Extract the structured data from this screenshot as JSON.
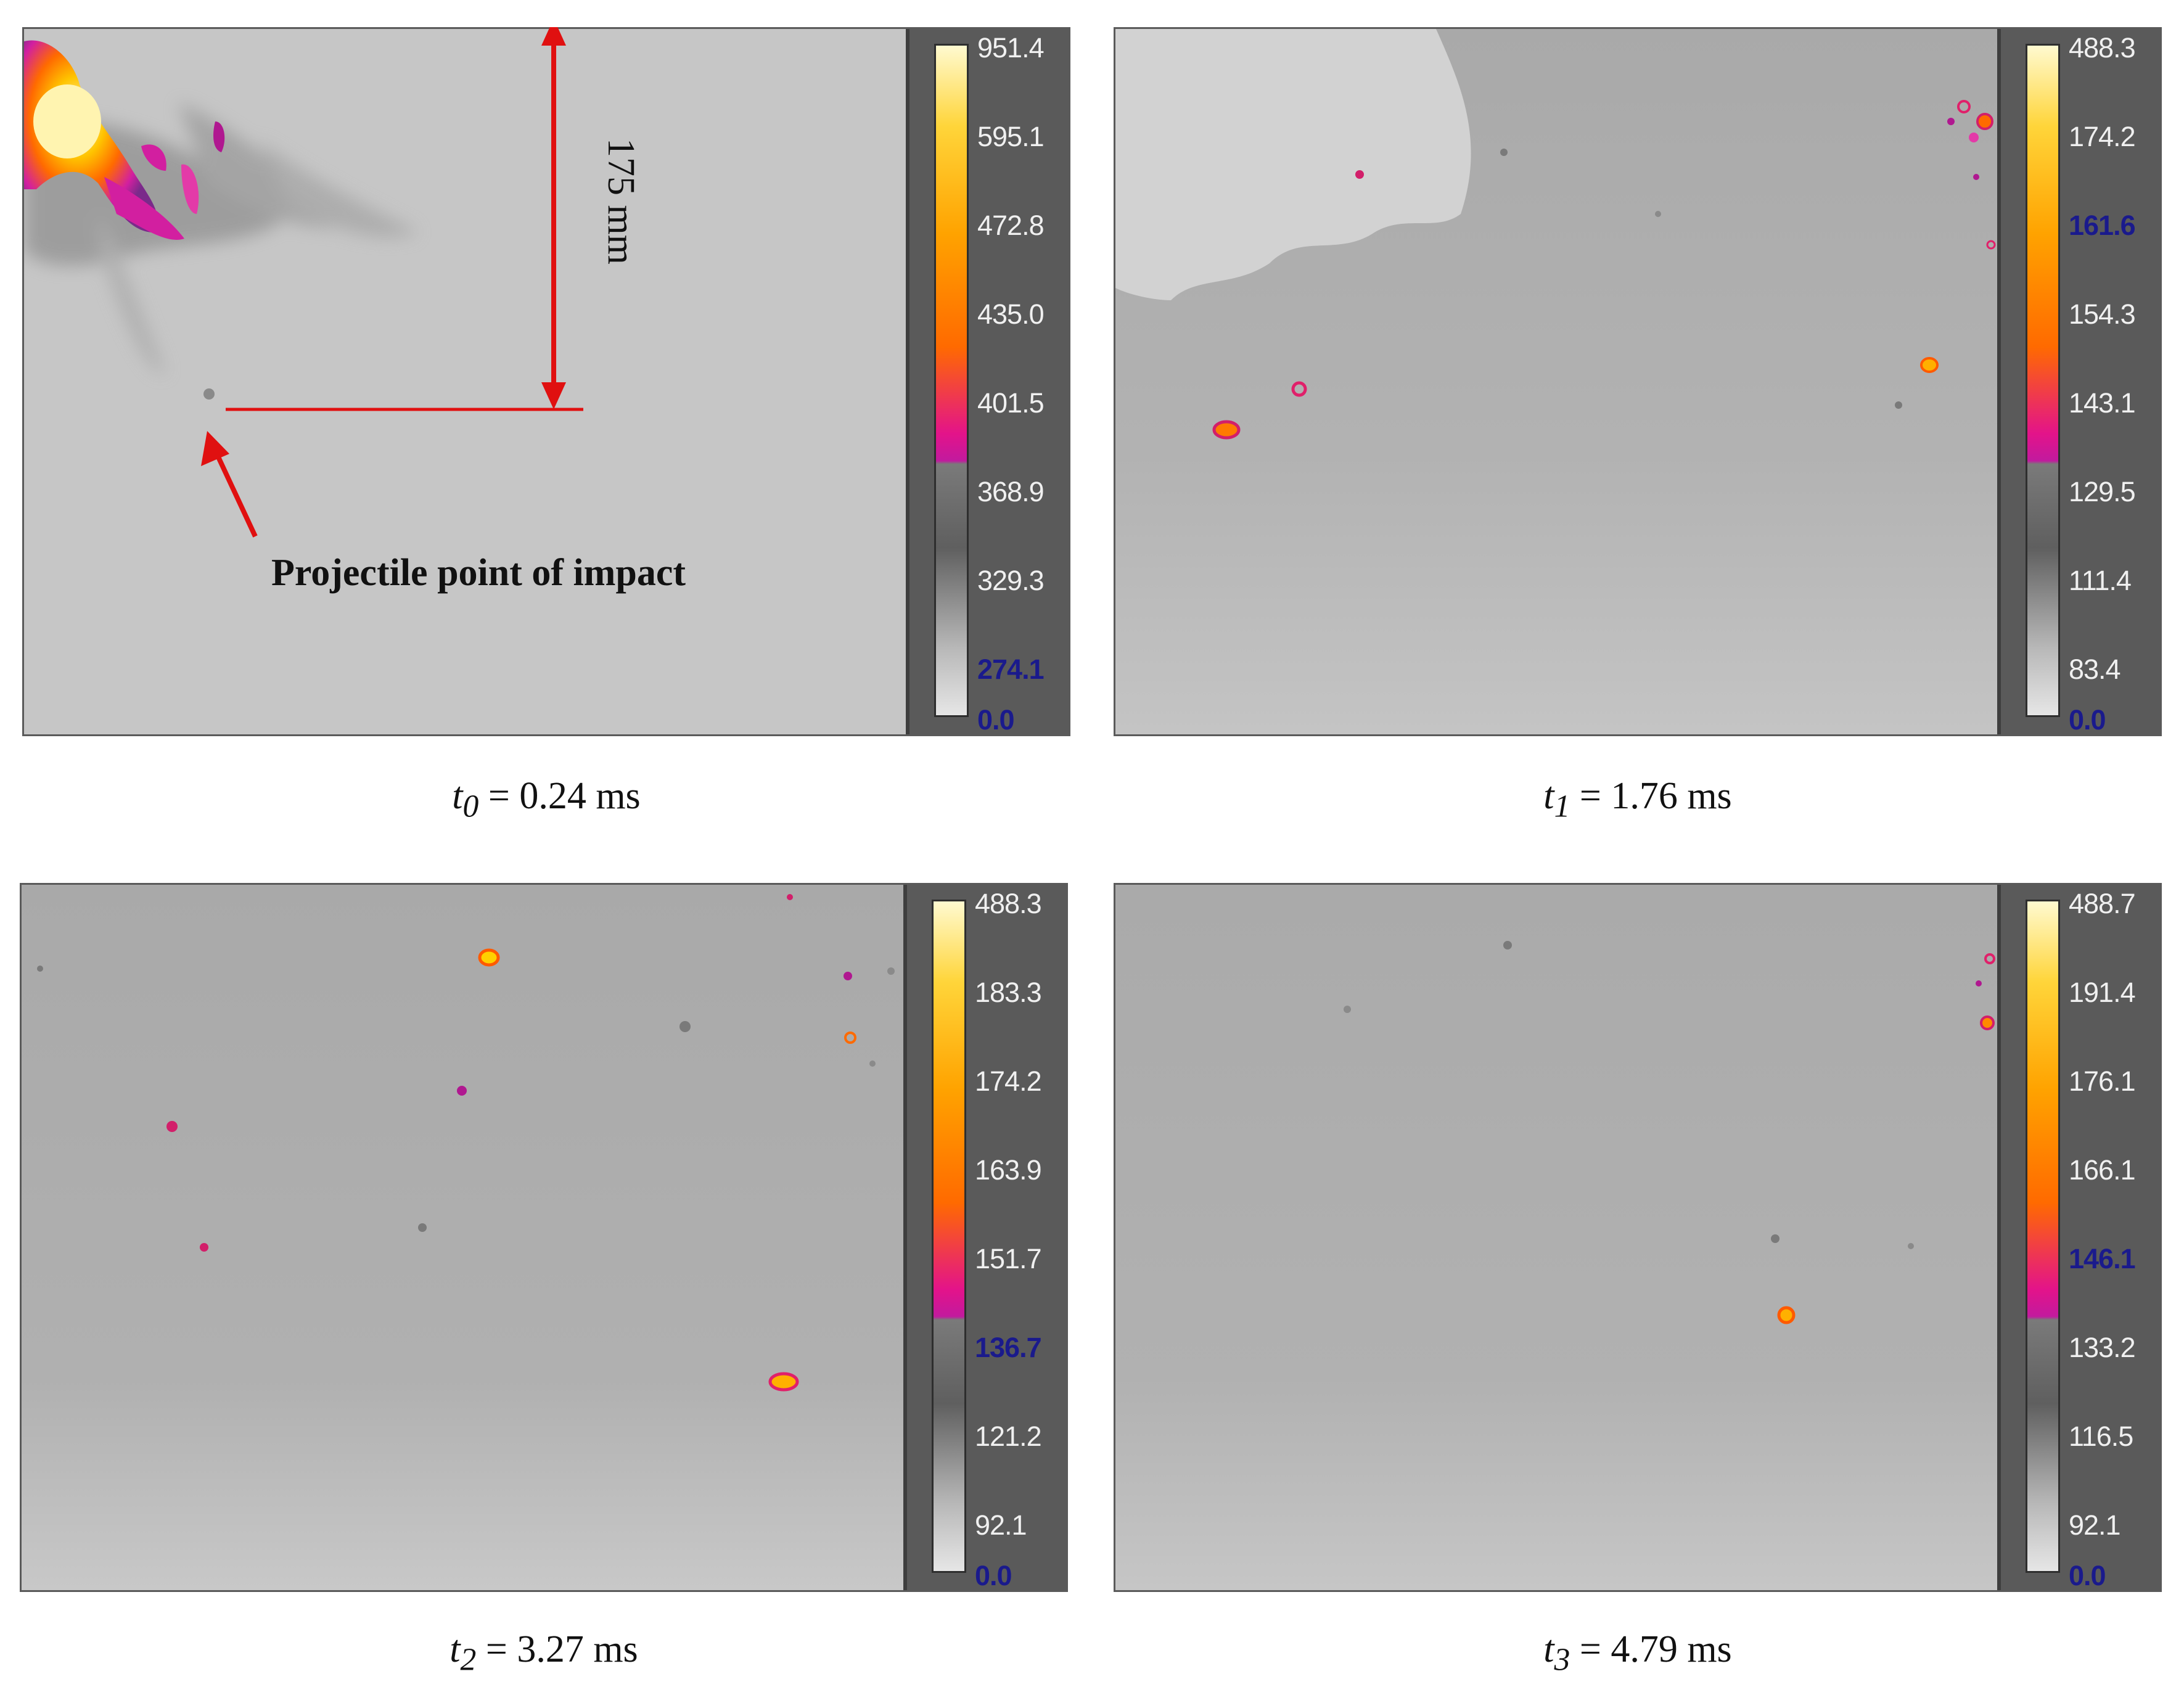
{
  "panels": [
    {
      "time_label": "0.24 ms",
      "time_prefix": "t",
      "time_sub": "0",
      "scale_ticks": [
        "951.4",
        "595.1",
        "472.8",
        "435.0",
        "401.5",
        "368.9",
        "329.3",
        "274.1",
        "0.0"
      ],
      "highlight_ticks": [
        "274.1",
        "0.0"
      ]
    },
    {
      "time_label": "1.76 ms",
      "time_prefix": "t",
      "time_sub": "1",
      "scale_ticks": [
        "488.3",
        "174.2",
        "161.6",
        "154.3",
        "143.1",
        "129.5",
        "111.4",
        "83.4",
        "0.0"
      ],
      "highlight_ticks": [
        "161.6",
        "0.0"
      ]
    },
    {
      "time_label": "3.27 ms",
      "time_prefix": "t",
      "time_sub": "2",
      "scale_ticks": [
        "488.3",
        "183.3",
        "174.2",
        "163.9",
        "151.7",
        "136.7",
        "121.2",
        "92.1",
        "0.0"
      ],
      "highlight_ticks": [
        "136.7",
        "0.0"
      ]
    },
    {
      "time_label": "4.79 ms",
      "time_prefix": "t",
      "time_sub": "3",
      "scale_ticks": [
        "488.7",
        "191.4",
        "176.1",
        "166.1",
        "146.1",
        "133.2",
        "116.5",
        "92.1",
        "0.0"
      ],
      "highlight_ticks": [
        "146.1",
        "0.0"
      ]
    }
  ],
  "annotations": {
    "impact_label": "Projectile point of impact",
    "distance_label": "175 mm"
  },
  "colors": {
    "palette_top": "#fff9c8",
    "palette_mid": "#ff8a00",
    "palette_low": "#d21fa0",
    "annotation": "#e01010",
    "highlight_tick": "#1a1a8c"
  }
}
